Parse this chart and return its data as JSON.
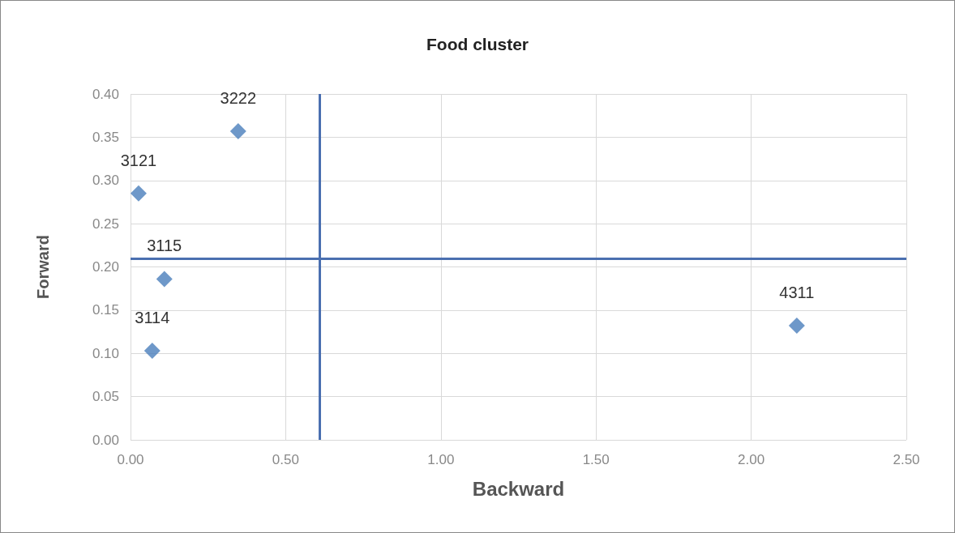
{
  "chart_data": {
    "type": "scatter",
    "title": "Food cluster",
    "xlabel": "Backward",
    "ylabel": "Forward",
    "x": [
      0.347,
      0.026,
      0.109,
      0.07,
      2.147
    ],
    "values": [
      0.357,
      0.285,
      0.186,
      0.103,
      0.132
    ],
    "color": "#4a7ebb",
    "marker": "diamond",
    "xlim": [
      0,
      2.5
    ],
    "xticks": [
      {
        "value": 0,
        "label": "0.00"
      },
      {
        "value": 0.5,
        "label": "0.50"
      },
      {
        "value": 1,
        "label": "1.00"
      },
      {
        "value": 1.5,
        "label": "1.50"
      },
      {
        "value": 2,
        "label": "2.00"
      },
      {
        "value": 2.5,
        "label": "2.50"
      }
    ],
    "ylim": [
      0,
      0.4
    ],
    "yticks": [
      {
        "value": 0,
        "label": "0.00"
      },
      {
        "value": 0.05,
        "label": "0.05"
      },
      {
        "value": 0.1,
        "label": "0.10"
      },
      {
        "value": 0.15,
        "label": "0.15"
      },
      {
        "value": 0.2,
        "label": "0.20"
      },
      {
        "value": 0.25,
        "label": "0.25"
      },
      {
        "value": 0.3,
        "label": "0.30"
      },
      {
        "value": 0.35,
        "label": "0.35"
      },
      {
        "value": 0.4,
        "label": "0.40"
      }
    ],
    "grid": true,
    "ref_lines": [
      {
        "axis": "x",
        "value": 0.615,
        "color": "#4a6fb0"
      },
      {
        "axis": "y",
        "value": 0.211,
        "color": "#4a6fb0"
      }
    ],
    "annotations": [
      {
        "text": "3222",
        "x": 0.347,
        "y": 0.357
      },
      {
        "text": "3121",
        "x": 0.026,
        "y": 0.285
      },
      {
        "text": "3115",
        "x": 0.109,
        "y": 0.186
      },
      {
        "text": "3114",
        "x": 0.07,
        "y": 0.103
      },
      {
        "text": "4311",
        "x": 2.147,
        "y": 0.132
      }
    ]
  }
}
